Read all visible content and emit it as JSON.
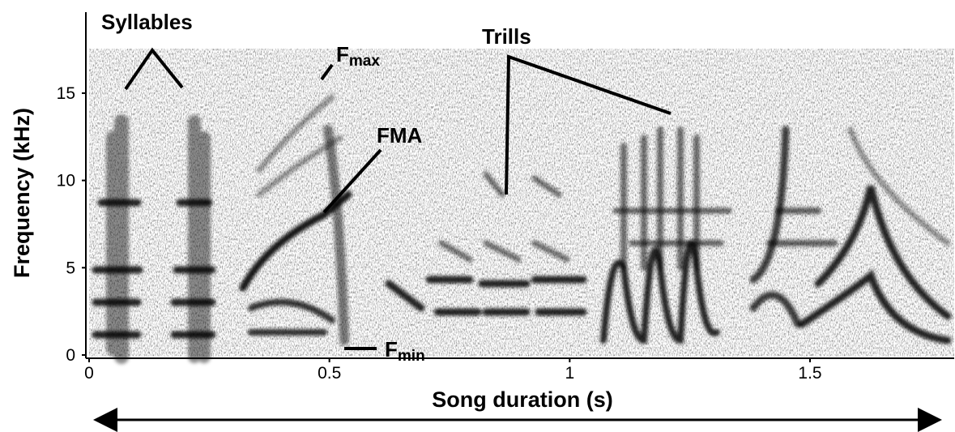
{
  "chart_data": {
    "type": "spectrogram",
    "x_label": "Song duration (s)",
    "y_label": "Frequency (kHz)",
    "xlim": [
      0,
      1.8
    ],
    "ylim": [
      0,
      19.5
    ],
    "xticks": [
      0,
      0.5,
      1,
      1.5
    ],
    "yticks": [
      0,
      5,
      10,
      15
    ],
    "annotations": [
      {
        "text": "Syllables"
      },
      {
        "text": "F",
        "subscript": "max"
      },
      {
        "text": "FMA"
      },
      {
        "text": "Trills"
      },
      {
        "text": "F",
        "subscript": "min"
      }
    ]
  }
}
